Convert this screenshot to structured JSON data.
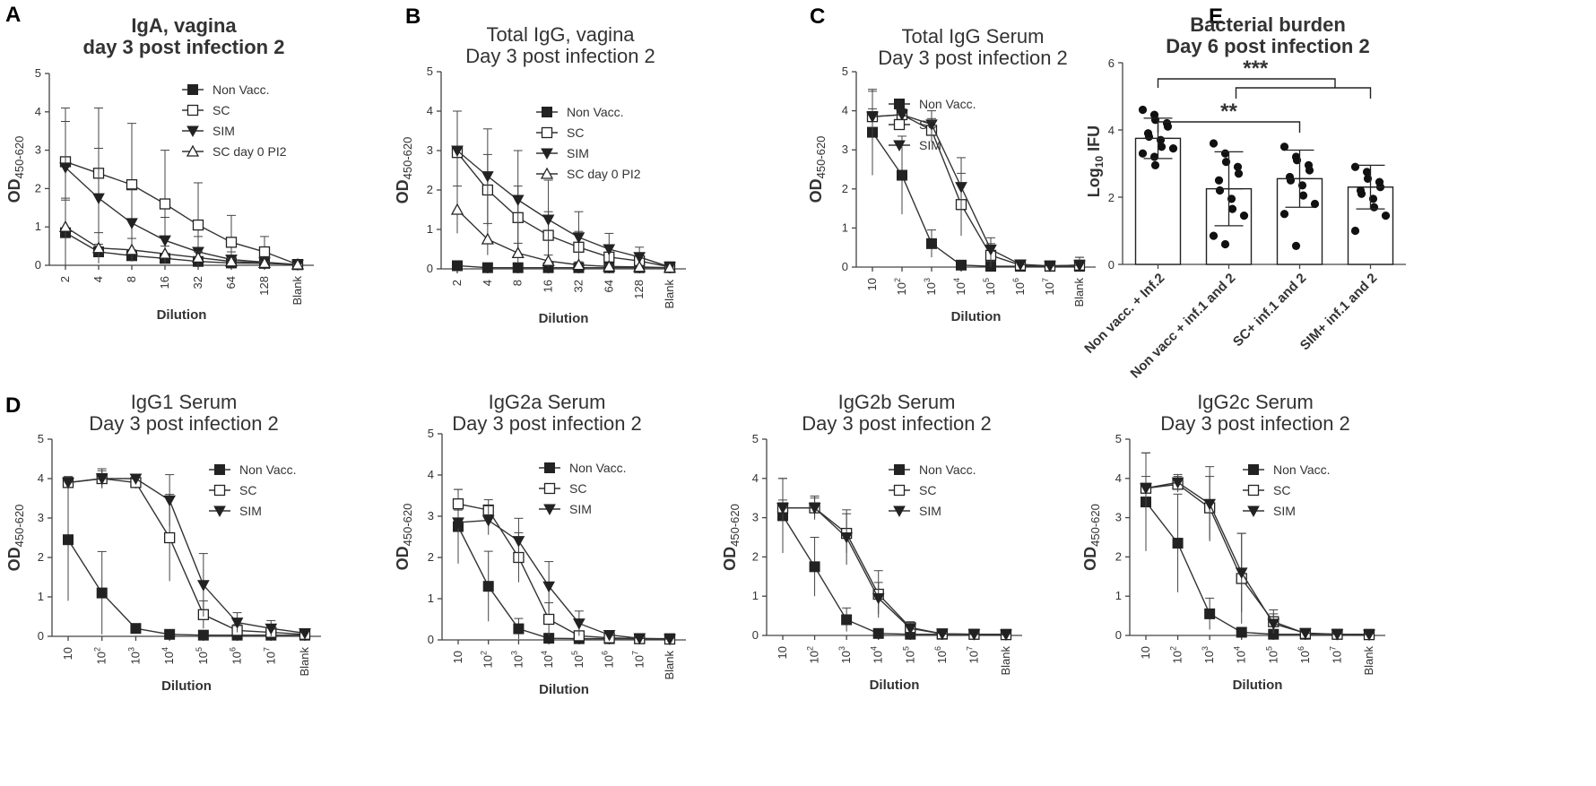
{
  "panel_letters": [
    "A",
    "B",
    "C",
    "D",
    "E"
  ],
  "chart_data": [
    {
      "type": "line",
      "title_lines": [
        "IgA, vagina",
        "day 3 post infection 2"
      ],
      "bold_title": true,
      "xlabel": "Dilution",
      "ylabel_main": "OD",
      "ylabel_sub": "450-620",
      "categories": [
        "2",
        "4",
        "8",
        "16",
        "32",
        "64",
        "128",
        "Blank"
      ],
      "ylim": [
        0,
        5
      ],
      "yticks": [
        "0",
        "1",
        "2",
        "3",
        "4",
        "5"
      ],
      "series": [
        {
          "name": "Non Vacc.",
          "marker": "square-filled",
          "values": [
            0.85,
            0.35,
            0.25,
            0.18,
            0.1,
            0.06,
            0.05,
            0.02
          ],
          "err": [
            0.9,
            0.2,
            0.15,
            0.1,
            0.08,
            0.05,
            0.04,
            0.02
          ]
        },
        {
          "name": "SC",
          "marker": "square-open",
          "values": [
            2.7,
            2.4,
            2.1,
            1.6,
            1.05,
            0.6,
            0.35,
            0.02
          ],
          "err": [
            1.4,
            1.7,
            1.6,
            1.4,
            1.1,
            0.7,
            0.4,
            0.02
          ]
        },
        {
          "name": "SIM",
          "marker": "triangle-down-filled",
          "values": [
            2.55,
            1.75,
            1.1,
            0.65,
            0.35,
            0.15,
            0.08,
            0.02
          ],
          "err": [
            1.2,
            1.3,
            0.9,
            0.6,
            0.4,
            0.2,
            0.1,
            0.02
          ]
        },
        {
          "name": "SC day 0 PI2",
          "marker": "triangle-up-open",
          "values": [
            1.0,
            0.45,
            0.4,
            0.3,
            0.2,
            0.1,
            0.06,
            0.02
          ],
          "err": [
            0.7,
            0.4,
            0.3,
            0.2,
            0.15,
            0.08,
            0.05,
            0.02
          ]
        }
      ]
    },
    {
      "type": "line",
      "title_lines": [
        "Total IgG, vagina",
        "Day 3 post infection 2"
      ],
      "bold_title": false,
      "xlabel": "Dilution",
      "ylabel_main": "OD",
      "ylabel_sub": "450-620",
      "categories": [
        "2",
        "4",
        "8",
        "16",
        "32",
        "64",
        "128",
        "Blank"
      ],
      "ylim": [
        0,
        5
      ],
      "yticks": [
        "0",
        "1",
        "2",
        "3",
        "4",
        "5"
      ],
      "series": [
        {
          "name": "Non Vacc.",
          "marker": "square-filled",
          "values": [
            0.08,
            0.03,
            0.03,
            0.03,
            0.03,
            0.03,
            0.03,
            0.03
          ],
          "err": [
            0.05,
            0.02,
            0.02,
            0.02,
            0.02,
            0.02,
            0.02,
            0.02
          ]
        },
        {
          "name": "SC",
          "marker": "square-open",
          "values": [
            2.95,
            2.0,
            1.3,
            0.85,
            0.55,
            0.3,
            0.2,
            0.05
          ],
          "err": [
            1.05,
            0.9,
            0.8,
            0.6,
            0.4,
            0.3,
            0.2,
            0.05
          ]
        },
        {
          "name": "SIM",
          "marker": "triangle-down-filled",
          "values": [
            3.0,
            2.35,
            1.75,
            1.25,
            0.8,
            0.5,
            0.3,
            0.05
          ],
          "err": [
            1.0,
            1.2,
            1.25,
            1.0,
            0.65,
            0.4,
            0.25,
            0.05
          ]
        },
        {
          "name": "SC day 0 PI2",
          "marker": "triangle-up-open",
          "values": [
            1.5,
            0.75,
            0.4,
            0.2,
            0.1,
            0.06,
            0.05,
            0.03
          ],
          "err": [
            0.6,
            0.4,
            0.25,
            0.15,
            0.08,
            0.05,
            0.04,
            0.02
          ]
        }
      ]
    },
    {
      "type": "line",
      "title_lines": [
        "Total IgG Serum",
        "Day 3 post infection 2"
      ],
      "bold_title": false,
      "xlabel": "Dilution",
      "ylabel_main": "OD",
      "ylabel_sub": "450-620",
      "categories": [
        "10",
        "10^2",
        "10^3",
        "10^4",
        "10^5",
        "10^6",
        "10^7",
        "Blank"
      ],
      "ylim": [
        0,
        5
      ],
      "yticks": [
        "0",
        "1",
        "2",
        "3",
        "4",
        "5"
      ],
      "series": [
        {
          "name": "Non Vacc.",
          "marker": "square-filled",
          "values": [
            3.45,
            2.35,
            0.6,
            0.05,
            0.02,
            0.02,
            0.02,
            0.02
          ],
          "err": [
            1.1,
            1.0,
            0.35,
            0.05,
            0.02,
            0.02,
            0.02,
            0.02
          ]
        },
        {
          "name": "SC",
          "marker": "square-open",
          "values": [
            3.85,
            3.9,
            3.5,
            1.6,
            0.3,
            0.05,
            0.03,
            0.05
          ],
          "err": [
            0.2,
            0.15,
            0.3,
            0.8,
            0.3,
            0.05,
            0.03,
            0.2
          ]
        },
        {
          "name": "SIM",
          "marker": "triangle-down-filled",
          "values": [
            3.85,
            3.9,
            3.65,
            2.05,
            0.45,
            0.07,
            0.03,
            0.05
          ],
          "err": [
            0.65,
            0.15,
            0.35,
            0.75,
            0.3,
            0.07,
            0.03,
            0.2
          ]
        }
      ]
    },
    {
      "type": "line",
      "title_lines": [
        "IgG1 Serum",
        "Day 3 post infection 2"
      ],
      "bold_title": false,
      "xlabel": "Dilution",
      "ylabel_main": "OD",
      "ylabel_sub": "450-620",
      "categories": [
        "10",
        "10^2",
        "10^3",
        "10^4",
        "10^5",
        "10^6",
        "10^7",
        "Blank"
      ],
      "ylim": [
        0,
        5
      ],
      "yticks": [
        "0",
        "1",
        "2",
        "3",
        "4",
        "5"
      ],
      "series": [
        {
          "name": "Non Vacc.",
          "marker": "square-filled",
          "values": [
            2.45,
            1.1,
            0.2,
            0.05,
            0.03,
            0.03,
            0.03,
            0.03
          ],
          "err": [
            1.55,
            1.05,
            0.1,
            0.04,
            0.03,
            0.03,
            0.03,
            0.03
          ]
        },
        {
          "name": "SC",
          "marker": "square-open",
          "values": [
            3.9,
            4.0,
            3.9,
            2.5,
            0.55,
            0.15,
            0.1,
            0.05
          ],
          "err": [
            0.15,
            0.2,
            0.15,
            1.1,
            0.35,
            0.15,
            0.1,
            0.05
          ]
        },
        {
          "name": "SIM",
          "marker": "triangle-down-filled",
          "values": [
            3.9,
            4.0,
            4.0,
            3.45,
            1.3,
            0.35,
            0.2,
            0.08
          ],
          "err": [
            0.15,
            0.25,
            0.1,
            0.65,
            0.8,
            0.25,
            0.2,
            0.05
          ]
        }
      ]
    },
    {
      "type": "line",
      "title_lines": [
        "IgG2a Serum",
        "Day 3 post infection 2"
      ],
      "bold_title": false,
      "xlabel": "Dilution",
      "ylabel_main": "OD",
      "ylabel_sub": "450-620",
      "categories": [
        "10",
        "10^2",
        "10^3",
        "10^4",
        "10^5",
        "10^6",
        "10^7",
        "Blank"
      ],
      "ylim": [
        0,
        5
      ],
      "yticks": [
        "0",
        "1",
        "2",
        "3",
        "4",
        "5"
      ],
      "series": [
        {
          "name": "Non Vacc.",
          "marker": "square-filled",
          "values": [
            2.75,
            1.3,
            0.27,
            0.04,
            0.03,
            0.03,
            0.03,
            0.03
          ],
          "err": [
            0.9,
            0.85,
            0.25,
            0.04,
            0.03,
            0.03,
            0.03,
            0.03
          ]
        },
        {
          "name": "SC",
          "marker": "square-open",
          "values": [
            3.3,
            3.15,
            2.0,
            0.5,
            0.1,
            0.05,
            0.03,
            0.02
          ],
          "err": [
            0.35,
            0.25,
            0.6,
            0.4,
            0.1,
            0.05,
            0.03,
            0.02
          ]
        },
        {
          "name": "SIM",
          "marker": "triangle-down-filled",
          "values": [
            2.85,
            2.9,
            2.4,
            1.3,
            0.4,
            0.12,
            0.04,
            0.02
          ],
          "err": [
            0.3,
            0.35,
            0.55,
            0.6,
            0.3,
            0.1,
            0.04,
            0.02
          ]
        }
      ]
    },
    {
      "type": "line",
      "title_lines": [
        "IgG2b Serum",
        "Day 3 post infection 2"
      ],
      "bold_title": false,
      "xlabel": "Dilution",
      "ylabel_main": "OD",
      "ylabel_sub": "450-620",
      "categories": [
        "10",
        "10^2",
        "10^3",
        "10^4",
        "10^5",
        "10^6",
        "10^7",
        "Blank"
      ],
      "ylim": [
        0,
        5
      ],
      "yticks": [
        "0",
        "1",
        "2",
        "3",
        "4",
        "5"
      ],
      "series": [
        {
          "name": "Non Vacc.",
          "marker": "square-filled",
          "values": [
            3.05,
            1.75,
            0.4,
            0.05,
            0.03,
            0.03,
            0.03,
            0.03
          ],
          "err": [
            0.95,
            0.75,
            0.3,
            0.04,
            0.03,
            0.03,
            0.03,
            0.03
          ]
        },
        {
          "name": "SC",
          "marker": "square-open",
          "values": [
            3.25,
            3.25,
            2.6,
            1.05,
            0.2,
            0.04,
            0.03,
            0.02
          ],
          "err": [
            0.2,
            0.25,
            0.5,
            0.6,
            0.15,
            0.04,
            0.03,
            0.02
          ]
        },
        {
          "name": "SIM",
          "marker": "triangle-down-filled",
          "values": [
            3.25,
            3.25,
            2.5,
            0.95,
            0.18,
            0.04,
            0.03,
            0.02
          ],
          "err": [
            0.75,
            0.3,
            0.7,
            0.4,
            0.15,
            0.04,
            0.03,
            0.02
          ]
        }
      ]
    },
    {
      "type": "line",
      "title_lines": [
        "IgG2c Serum",
        "Day 3 post infection 2"
      ],
      "bold_title": false,
      "xlabel": "Dilution",
      "ylabel_main": "OD",
      "ylabel_sub": "450-620",
      "categories": [
        "10",
        "10^2",
        "10^3",
        "10^4",
        "10^5",
        "10^6",
        "10^7",
        "Blank"
      ],
      "ylim": [
        0,
        5
      ],
      "yticks": [
        "0",
        "1",
        "2",
        "3",
        "4",
        "5"
      ],
      "series": [
        {
          "name": "Non Vacc.",
          "marker": "square-filled",
          "values": [
            3.4,
            2.35,
            0.55,
            0.08,
            0.03,
            0.03,
            0.03,
            0.03
          ],
          "err": [
            1.25,
            1.25,
            0.4,
            0.05,
            0.03,
            0.03,
            0.03,
            0.03
          ]
        },
        {
          "name": "SC",
          "marker": "square-open",
          "values": [
            3.75,
            3.85,
            3.25,
            1.45,
            0.35,
            0.05,
            0.03,
            0.02
          ],
          "err": [
            0.3,
            0.2,
            0.8,
            1.15,
            0.3,
            0.05,
            0.03,
            0.02
          ]
        },
        {
          "name": "SIM",
          "marker": "triangle-down-filled",
          "values": [
            3.75,
            3.9,
            3.35,
            1.6,
            0.3,
            0.06,
            0.03,
            0.02
          ],
          "err": [
            0.9,
            0.2,
            0.95,
            1.0,
            0.25,
            0.05,
            0.03,
            0.02
          ]
        }
      ]
    },
    {
      "type": "bar",
      "title_lines": [
        "Bacterial burden",
        "Day 6 post infection 2"
      ],
      "ylabel_main": "Log",
      "ylabel_sub": "10",
      "ylabel_rest": " IFU",
      "categories": [
        "Non vacc. + Inf.2",
        "Non vacc + inf.1 and 2",
        "SC+ inf.1 and 2",
        "SIM+ inf.1 and 2"
      ],
      "values": [
        3.75,
        2.25,
        2.55,
        2.3
      ],
      "err": [
        0.6,
        1.1,
        0.85,
        0.65
      ],
      "points": [
        [
          4.6,
          4.45,
          4.3,
          4.2,
          4.1,
          3.9,
          3.8,
          3.7,
          3.5,
          3.45,
          3.3,
          3.2,
          2.95
        ],
        [
          3.6,
          3.3,
          3.05,
          2.9,
          2.7,
          2.5,
          2.2,
          1.95,
          1.65,
          1.45,
          0.85,
          0.6
        ],
        [
          3.5,
          3.2,
          3.1,
          2.95,
          2.8,
          2.6,
          2.5,
          2.35,
          2.05,
          1.8,
          1.5,
          0.55
        ],
        [
          2.9,
          2.75,
          2.55,
          2.45,
          2.3,
          2.2,
          2.1,
          1.95,
          1.7,
          1.45,
          1.0
        ]
      ],
      "ylim": [
        0,
        6
      ],
      "yticks": [
        "0",
        "2",
        "4",
        "6"
      ],
      "significance": [
        {
          "from": 0,
          "to": 2,
          "label": "**"
        },
        {
          "from": 0,
          "to": 2,
          "label": "***",
          "second_to": 3
        }
      ]
    }
  ]
}
